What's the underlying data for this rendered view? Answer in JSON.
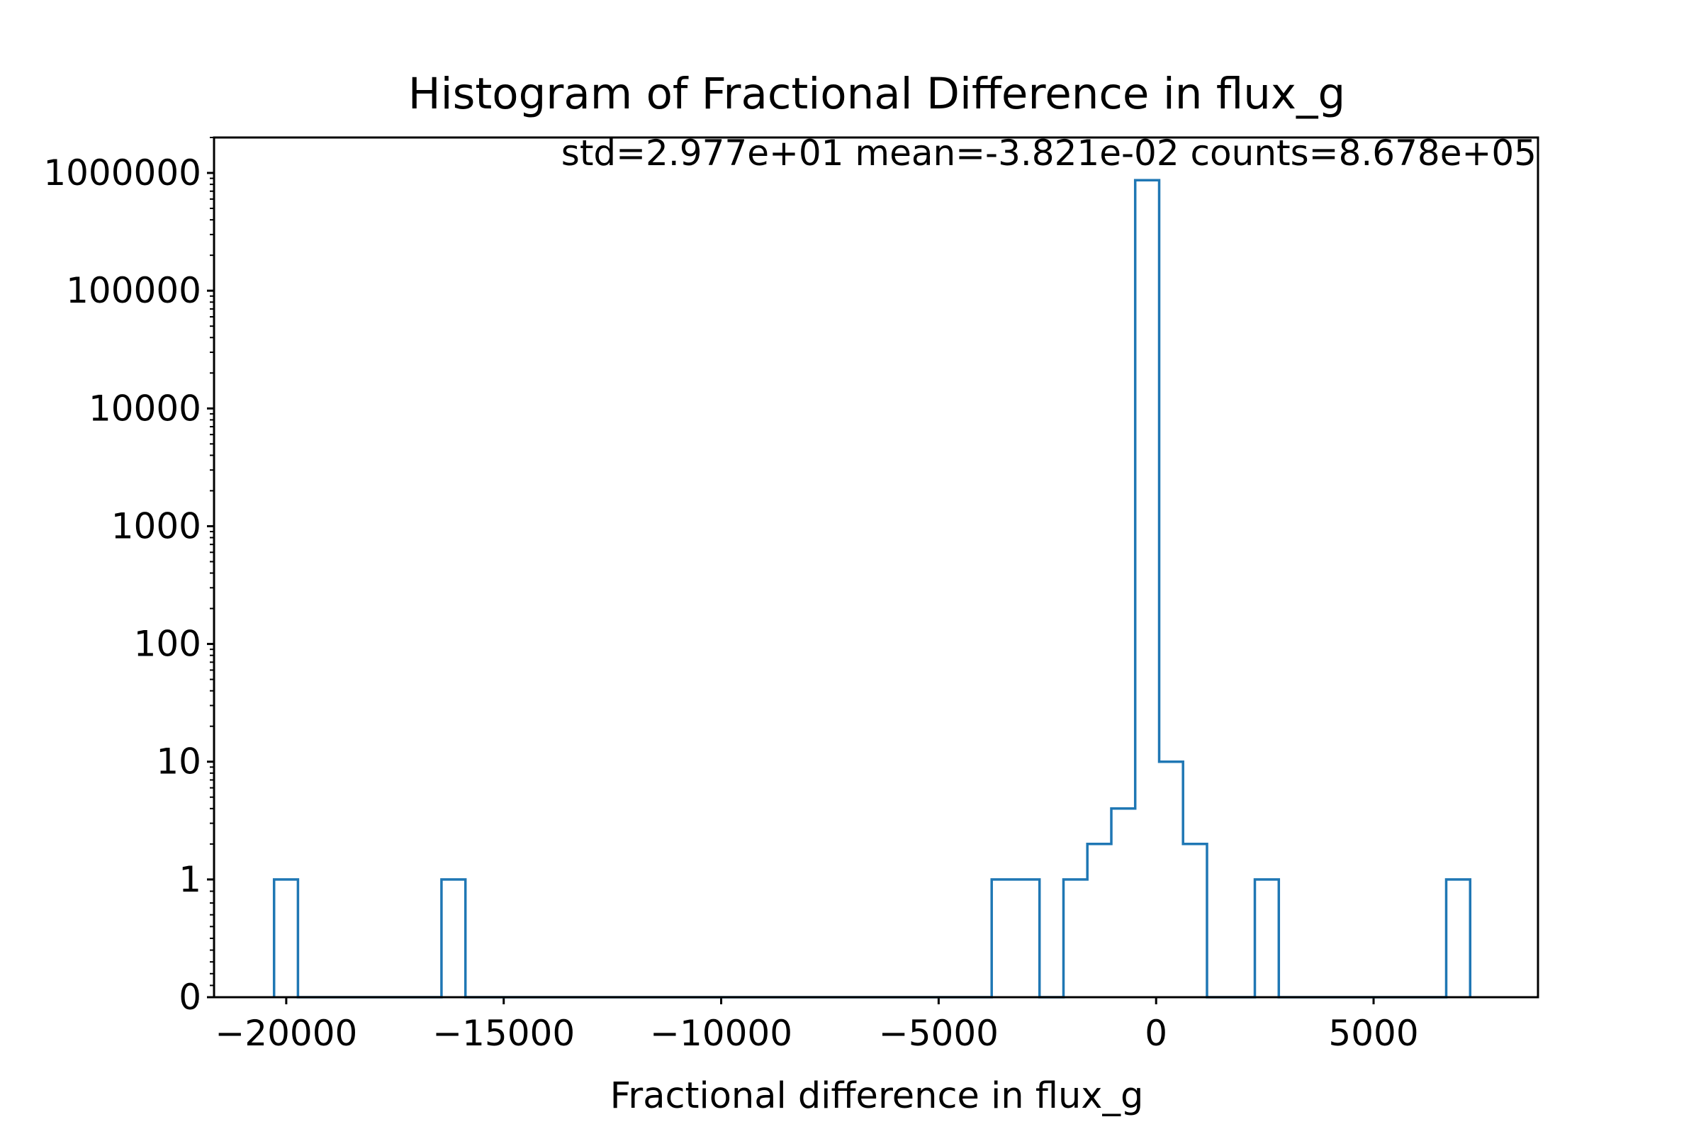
{
  "chart_data": {
    "type": "histogram",
    "title": "Histogram of Fractional Difference in flux_g",
    "annotation": "std=2.977e+01 mean=-3.821e-02 counts=8.678e+05",
    "xlabel": "Fractional difference in flux_g",
    "ylabel": "",
    "y_scale": "symlog",
    "xlim": [
      -21660,
      8780
    ],
    "ylim": [
      0,
      2000000
    ],
    "x_ticks": [
      -20000,
      -15000,
      -10000,
      -5000,
      0,
      5000
    ],
    "x_tick_labels": [
      "−20000",
      "−15000",
      "−10000",
      "−5000",
      "0",
      "5000"
    ],
    "y_ticks": [
      0,
      1,
      10,
      100,
      1000,
      10000,
      100000,
      1000000
    ],
    "y_tick_labels": [
      "0",
      "1",
      "10",
      "100",
      "1000",
      "10000",
      "100000",
      "1000000"
    ],
    "bin_width": 550,
    "bins": [
      {
        "x0": -20280,
        "x1": -19730,
        "count": 1
      },
      {
        "x0": -16430,
        "x1": -15880,
        "count": 1
      },
      {
        "x0": -3780,
        "x1": -3230,
        "count": 1
      },
      {
        "x0": -3230,
        "x1": -2680,
        "count": 1
      },
      {
        "x0": -2130,
        "x1": -1580,
        "count": 1
      },
      {
        "x0": -1580,
        "x1": -1030,
        "count": 2
      },
      {
        "x0": -1030,
        "x1": -480,
        "count": 4
      },
      {
        "x0": -480,
        "x1": 70,
        "count": 867800
      },
      {
        "x0": 70,
        "x1": 620,
        "count": 10
      },
      {
        "x0": 620,
        "x1": 1170,
        "count": 2
      },
      {
        "x0": 2270,
        "x1": 2820,
        "count": 1
      },
      {
        "x0": 6670,
        "x1": 7220,
        "count": 1
      }
    ],
    "colors": {
      "series": "#1f77b4",
      "axes": "#000000"
    }
  }
}
